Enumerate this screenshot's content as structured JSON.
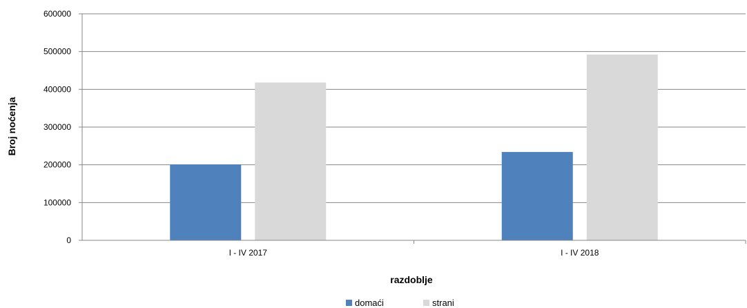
{
  "chart_data": {
    "type": "bar",
    "categories": [
      "I - IV 2017",
      "I - IV 2018"
    ],
    "series": [
      {
        "name": "domaći",
        "values": [
          201000,
          234000
        ],
        "color": "#4f81bd"
      },
      {
        "name": "strani",
        "values": [
          418000,
          492000
        ],
        "color": "#d9d9d9"
      }
    ],
    "xlabel": "razdoblje",
    "ylabel": "Broj noćenja",
    "ylim": [
      0,
      600000
    ],
    "yticks": [
      "0",
      "100000",
      "200000",
      "300000",
      "400000",
      "500000",
      "600000"
    ],
    "grid": true,
    "legend_position": "bottom"
  }
}
